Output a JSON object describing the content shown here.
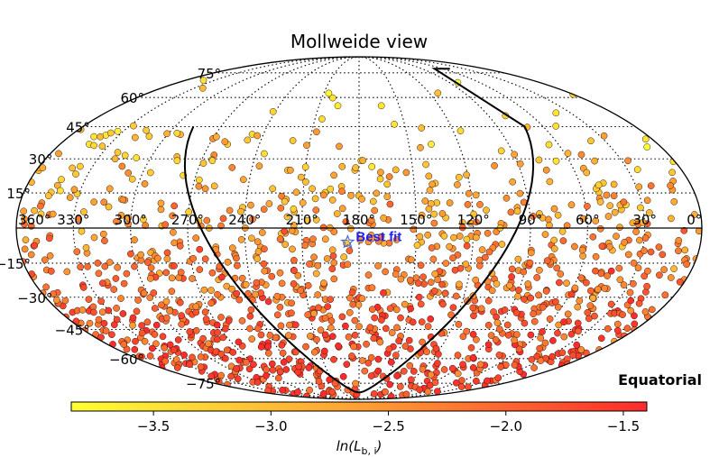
{
  "chart_data": {
    "type": "scatter",
    "projection": "Mollweide",
    "title": "Mollweide view",
    "frame_label": "Equatorial",
    "longitude_ticks": [
      {
        "value": 360,
        "label": "360°"
      },
      {
        "value": 330,
        "label": "330°"
      },
      {
        "value": 300,
        "label": "300°"
      },
      {
        "value": 270,
        "label": "270°"
      },
      {
        "value": 240,
        "label": "240°"
      },
      {
        "value": 210,
        "label": "210°"
      },
      {
        "value": 180,
        "label": "180°"
      },
      {
        "value": 150,
        "label": "150°"
      },
      {
        "value": 120,
        "label": "120°"
      },
      {
        "value": 90,
        "label": "90°"
      },
      {
        "value": 60,
        "label": "60°"
      },
      {
        "value": 30,
        "label": "30°"
      },
      {
        "value": 0,
        "label": "0°"
      }
    ],
    "latitude_ticks": [
      {
        "value": 75,
        "label": "75°"
      },
      {
        "value": 60,
        "label": "60°"
      },
      {
        "value": 45,
        "label": "45°"
      },
      {
        "value": 30,
        "label": "30°"
      },
      {
        "value": 15,
        "label": "15°"
      },
      {
        "value": -15,
        "label": "−15°"
      },
      {
        "value": -30,
        "label": "−30°"
      },
      {
        "value": -45,
        "label": "−45°"
      },
      {
        "value": -60,
        "label": "−60°"
      },
      {
        "value": -75,
        "label": "−75°"
      }
    ],
    "colorbar": {
      "label": "ln(L_b,i)",
      "label_main": "ln(L",
      "label_sub": "b, i",
      "label_close": ")",
      "range": [
        -3.85,
        -1.4
      ],
      "ticks": [
        {
          "value": -3.5,
          "label": "−3.5"
        },
        {
          "value": -3.0,
          "label": "−3.0"
        },
        {
          "value": -2.5,
          "label": "−2.5"
        },
        {
          "value": -2.0,
          "label": "−2.0"
        },
        {
          "value": -1.5,
          "label": "−1.5"
        }
      ],
      "colors": [
        "#ffff33",
        "#ffa033",
        "#ff2b2b"
      ]
    },
    "best_fit": {
      "label": "Best fit",
      "ra": 186,
      "dec": -6
    },
    "exposure_boundary_dec": 45,
    "point_count": 1300,
    "note": "Individual event points are sampled to reproduce the plotted distribution (denser toward the south, redder at lower declinations)."
  }
}
